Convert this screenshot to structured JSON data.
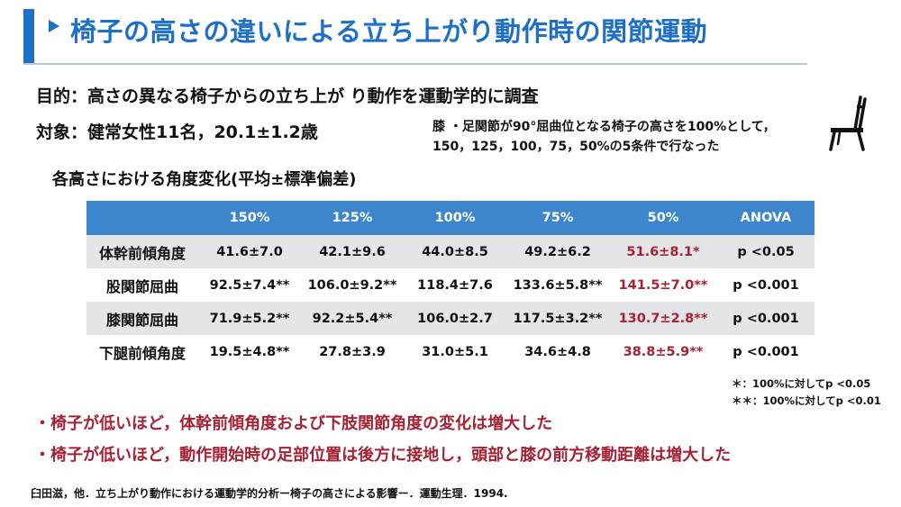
{
  "header": {
    "title": "椅子の高さの違いによる立ち上がり動作時の関節運動"
  },
  "info": {
    "purpose": "目的：高さの異なる椅子からの立ち上が り動作を運動学的に調査",
    "subject": "対象：健常女性11名，20.1±1.2歳",
    "note_line1": "膝 ・足関節が90°屈曲位となる椅子の高さを100%として，",
    "note_line2": "150，125，100，75，50%の5条件で行なった"
  },
  "table_title": "各高さにおける角度変化(平均±標準偏差)",
  "table": {
    "headers": [
      "",
      "150%",
      "125%",
      "100%",
      "75%",
      "50%",
      "ANOVA"
    ],
    "rows": [
      {
        "label": "体幹前傾角度",
        "cells": [
          "41.6±7.0",
          "42.1±9.6",
          "44.0±8.5",
          "49.2±6.2",
          "51.6±8.1*",
          "p <0.05"
        ]
      },
      {
        "label": "股関節屈曲",
        "cells": [
          "92.5±7.4**",
          "106.0±9.2**",
          "118.4±7.6",
          "133.6±5.8**",
          "141.5±7.0**",
          "p <0.001"
        ]
      },
      {
        "label": "膝関節屈曲",
        "cells": [
          "71.9±5.2**",
          "92.2±5.4**",
          "106.0±2.7",
          "117.5±3.2**",
          "130.7±2.8**",
          "p <0.001"
        ]
      },
      {
        "label": "下腿前傾角度",
        "cells": [
          "19.5±4.8**",
          "27.8±3.9",
          "31.0±5.1",
          "34.6±4.8",
          "38.8±5.9**",
          "p <0.001"
        ]
      }
    ]
  },
  "footnotes": {
    "single": "＊：100%に対してp <0.05",
    "double": "＊＊：100%に対してp <0.01"
  },
  "conclusions": [
    "・椅子が低いほど，体幹前傾角度および下肢関節角度の変化は増大した",
    "・椅子が低いほど，動作開始時の足部位置は後方に接地し，頭部と膝の前方移動距離は増大した"
  ],
  "citation": "臼田滋，他．立ち上がり動作における運動学的分析ー椅子の高さによる影響ー．運動生理．1994.",
  "colors": {
    "accent": "#1e6fc6",
    "table_header": "#3d86cd",
    "highlight": "#a52235",
    "row_shade": "#e4e5e7"
  },
  "icons": {
    "title_marker": "triangle-right-icon",
    "chair": "chair-icon"
  }
}
